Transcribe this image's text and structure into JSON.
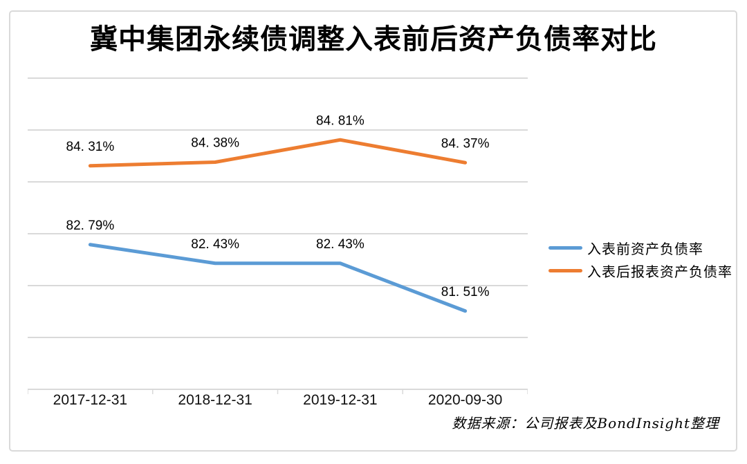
{
  "chart_data": {
    "type": "line",
    "title": "冀中集团永续债调整入表前后资产负债率对比",
    "categories": [
      "2017-12-31",
      "2018-12-31",
      "2019-12-31",
      "2020-09-30"
    ],
    "series": [
      {
        "id": "before-inclusion",
        "name": "入表前资产负债率",
        "color": "#5B9BD5",
        "values": [
          82.79,
          82.43,
          82.43,
          81.51
        ],
        "labels": [
          "82. 79%",
          "82. 43%",
          "82. 43%",
          "81. 51%"
        ]
      },
      {
        "id": "after-inclusion",
        "name": "入表后报表资产负债率",
        "color": "#ED7D31",
        "values": [
          84.31,
          84.38,
          84.81,
          84.37
        ],
        "labels": [
          "84. 31%",
          "84. 38%",
          "84. 81%",
          "84. 37%"
        ]
      }
    ],
    "xlabel": "",
    "ylabel": "",
    "ylim": [
      80,
      86
    ],
    "y_grid_step": 1,
    "grid": true,
    "y_axis_labels_visible": false,
    "legend_position": "right",
    "source": "数据来源：公司报表及BondInsight整理"
  },
  "style": {
    "grid_color": "#d9d9d9",
    "axis_color": "#d9d9d9",
    "label_text_color": "#000000",
    "line_width": 5
  }
}
